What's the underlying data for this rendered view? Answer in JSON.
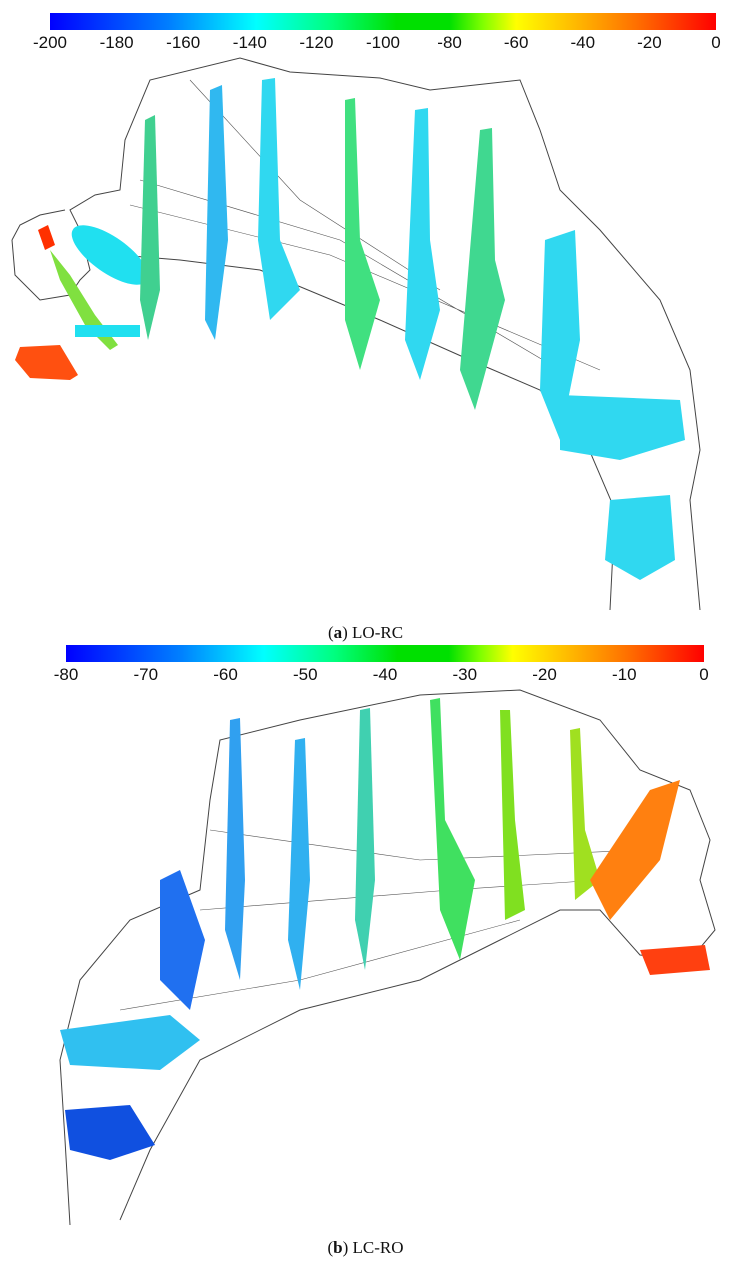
{
  "panels": [
    {
      "label": "a",
      "title": "LO-RC",
      "colorbar": {
        "min": -200,
        "max": 0,
        "ticks": [
          "-200",
          "-180",
          "-160",
          "-140",
          "-120",
          "-100",
          "-80",
          "-60",
          "-40",
          "-20",
          "0"
        ],
        "colormap": [
          "#0000ff",
          "#00ffff",
          "#00e000",
          "#ffff00",
          "#ff0000"
        ]
      }
    },
    {
      "label": "b",
      "title": "LC-RO",
      "colorbar": {
        "min": -80,
        "max": 0,
        "ticks": [
          "-80",
          "-70",
          "-60",
          "-50",
          "-40",
          "-30",
          "-20",
          "-10",
          "0"
        ],
        "colormap": [
          "#0000ff",
          "#00ffff",
          "#00e000",
          "#ffff00",
          "#ff0000"
        ]
      }
    }
  ]
}
